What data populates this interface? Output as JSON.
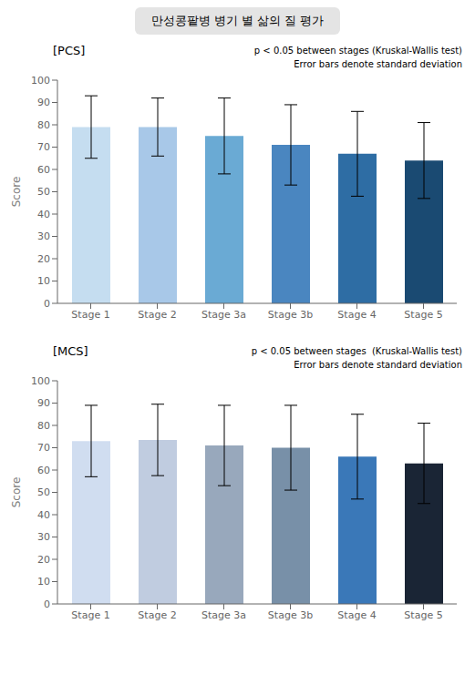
{
  "title": "만성콩팥병 병기 별 삶의 질 평가",
  "chart_data": [
    {
      "type": "bar",
      "title": "[PCS]",
      "categories": [
        "Stage 1",
        "Stage 2",
        "Stage 3a",
        "Stage 3b",
        "Stage 4",
        "Stage 5"
      ],
      "values": [
        79,
        79,
        75,
        71,
        67,
        64
      ],
      "errors": [
        14,
        13,
        17,
        18,
        19,
        17
      ],
      "colors": [
        "#c5ddf0",
        "#a8c8e8",
        "#6aaad4",
        "#4a86c0",
        "#2e6da4",
        "#1a4a72"
      ],
      "annotation": "p < 0.05 between stages (Kruskal-Wallis test)\nError bars denote standard deviation",
      "ylabel": "Score",
      "ylim": [
        0,
        100
      ],
      "yticks": [
        0,
        10,
        20,
        30,
        40,
        50,
        60,
        70,
        80,
        90,
        100
      ],
      "grid": false
    },
    {
      "type": "bar",
      "title": "[MCS]",
      "categories": [
        "Stage 1",
        "Stage 2",
        "Stage 3a",
        "Stage 3b",
        "Stage 4",
        "Stage 5"
      ],
      "values": [
        73,
        73.5,
        71,
        70,
        66,
        63
      ],
      "errors": [
        16,
        16,
        18,
        19,
        19,
        18
      ],
      "colors": [
        "#d0ddf0",
        "#c0cce0",
        "#98a8bc",
        "#7890a8",
        "#3a78b8",
        "#1a2535"
      ],
      "annotation": "p < 0.05 between stages  (Kruskal-Wallis test)\nError bars denote standard deviation",
      "ylabel": "Score",
      "ylim": [
        0,
        100
      ],
      "yticks": [
        0,
        10,
        20,
        30,
        40,
        50,
        60,
        70,
        80,
        90,
        100
      ],
      "grid": false
    }
  ]
}
